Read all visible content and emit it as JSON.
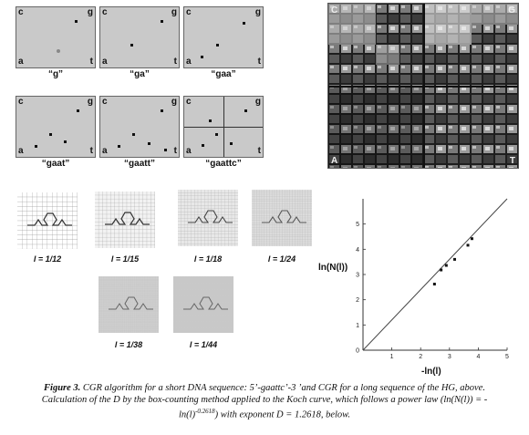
{
  "figure": {
    "label": "Figure 3.",
    "caption_part1": "CGR algorithm for a short DNA sequence: 5’-gaattc’-3 ’and CGR for a long sequence of the HG, above. Calculation of the D by the box-counting method applied to the Koch curve, which follows a power law (ln(N(l)) = -ln(l)",
    "caption_exponent": "-0.2618",
    "caption_part2": ") with exponent D = 1.2618, below."
  },
  "corners": {
    "c": "c",
    "g": "g",
    "a": "a",
    "t": "t"
  },
  "cgr_panels": [
    {
      "caption": "“g”"
    },
    {
      "caption": "“ga”"
    },
    {
      "caption": "“gaa”"
    },
    {
      "caption": "“gaat”"
    },
    {
      "caption": "“gaatt”"
    },
    {
      "caption": "“gaattc”"
    }
  ],
  "big_cgr": {
    "c": "C",
    "g": "G",
    "a": "A",
    "t": "T"
  },
  "koch_panels": [
    {
      "label": "l = 1/12"
    },
    {
      "label": "l = 1/15"
    },
    {
      "label": "l = 1/18"
    },
    {
      "label": "l = 1/24"
    },
    {
      "label": "l = 1/38"
    },
    {
      "label": "l = 1/44"
    }
  ],
  "chart_data": {
    "type": "scatter",
    "xlabel": "-ln(l)",
    "ylabel": "ln(N(l))",
    "xlim": [
      0,
      5
    ],
    "ylim": [
      0,
      6
    ],
    "xticks": [
      "0",
      "1",
      "2",
      "3",
      "4",
      "5"
    ],
    "yticks": [
      "0",
      "1",
      "2",
      "3",
      "4",
      "5"
    ],
    "points": {
      "x": [
        2.48,
        2.71,
        2.89,
        3.18,
        3.64,
        3.78
      ],
      "y": [
        2.62,
        3.18,
        3.36,
        3.6,
        4.16,
        4.42
      ]
    },
    "fit_line": {
      "x": [
        0,
        5
      ],
      "y": [
        0,
        6.309
      ]
    }
  }
}
